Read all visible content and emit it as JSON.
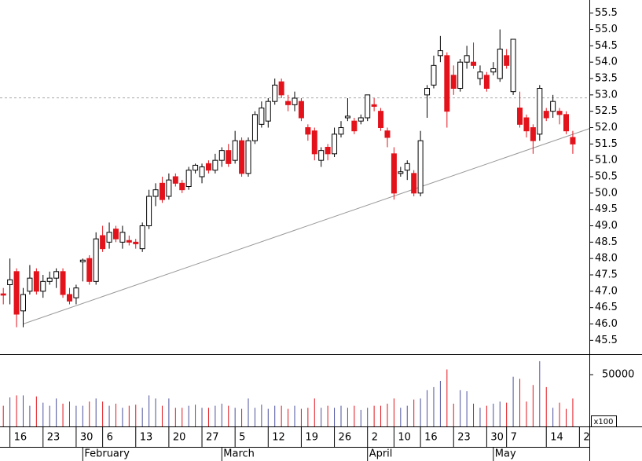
{
  "chart_data": {
    "type": "candlestick",
    "xlim": [
      -0.5,
      88.5
    ],
    "ylim": [
      45.1,
      55.9
    ],
    "yticks": [
      45.5,
      {
        "value": 46,
        "label": "46.0"
      },
      46.5,
      {
        "value": 47,
        "label": "47.0"
      },
      47.5,
      {
        "value": 48,
        "label": "48.0"
      },
      48.5,
      {
        "value": 49,
        "label": "49.0"
      },
      49.5,
      {
        "value": 50,
        "label": "50.0"
      },
      50.5,
      {
        "value": 51,
        "label": "51.0"
      },
      51.5,
      {
        "value": 52,
        "label": "52.0"
      },
      52.5,
      {
        "value": 53,
        "label": "53.0"
      },
      53.5,
      {
        "value": 54,
        "label": "54.0"
      },
      54.5,
      {
        "value": 55,
        "label": "55.0"
      },
      55.5
    ],
    "xticks": [
      {
        "value": 1,
        "label": "16"
      },
      {
        "value": 6,
        "label": "23"
      },
      {
        "value": 11,
        "label": "30"
      },
      {
        "value": 15,
        "label": "6"
      },
      {
        "value": 20,
        "label": "13"
      },
      {
        "value": 25,
        "label": "20"
      },
      {
        "value": 30,
        "label": "27"
      },
      {
        "value": 35,
        "label": "5"
      },
      {
        "value": 40,
        "label": "12"
      },
      {
        "value": 45,
        "label": "19"
      },
      {
        "value": 50,
        "label": "26"
      },
      {
        "value": 55,
        "label": "2"
      },
      {
        "value": 59,
        "label": "10"
      },
      {
        "value": 63,
        "label": "16"
      },
      {
        "value": 68,
        "label": "23"
      },
      {
        "value": 73,
        "label": "30"
      },
      {
        "value": 76,
        "label": "7"
      },
      {
        "value": 82,
        "label": "14"
      },
      {
        "value": 87,
        "label": "2"
      }
    ],
    "month_ticks": [
      {
        "value": 12,
        "label": "February"
      },
      {
        "value": 33,
        "label": "March"
      },
      {
        "value": 55,
        "label": "April"
      },
      {
        "value": 74,
        "label": "May"
      }
    ],
    "open": [
      46.92,
      47.2,
      47.6,
      46.4,
      47.0,
      47.6,
      47.0,
      47.3,
      47.4,
      47.6,
      46.9,
      46.8,
      47.9,
      48.0,
      47.3,
      48.7,
      48.5,
      48.9,
      48.5,
      48.55,
      48.5,
      48.3,
      49.0,
      49.9,
      50.3,
      49.9,
      50.5,
      50.3,
      50.2,
      50.7,
      50.5,
      50.9,
      50.7,
      51.0,
      51.3,
      51.0,
      51.6,
      50.6,
      51.6,
      52.1,
      52.2,
      52.8,
      53.4,
      52.8,
      52.7,
      52.8,
      52.0,
      51.9,
      51.0,
      51.4,
      51.2,
      51.8,
      52.3,
      52.2,
      52.2,
      52.3,
      52.7,
      52.5,
      51.9,
      51.2,
      50.6,
      50.7,
      50.6,
      50.0,
      53.0,
      53.3,
      54.2,
      54.2,
      53.6,
      53.2,
      54.0,
      54.0,
      53.5,
      53.6,
      53.7,
      53.5,
      54.2,
      53.1,
      52.6,
      52.3,
      52.0,
      51.8,
      52.5,
      52.5,
      52.5,
      52.4,
      51.7
    ],
    "high": [
      47.1,
      48.0,
      47.7,
      47.1,
      47.8,
      47.7,
      47.5,
      47.6,
      47.7,
      47.7,
      47.1,
      47.2,
      48.0,
      48.1,
      48.8,
      49.0,
      49.1,
      49.0,
      49.0,
      48.7,
      48.6,
      49.1,
      50.1,
      50.3,
      50.5,
      50.6,
      50.6,
      50.4,
      50.8,
      50.9,
      50.9,
      51.0,
      51.2,
      51.4,
      51.5,
      51.9,
      51.7,
      51.7,
      52.5,
      52.8,
      52.9,
      53.5,
      53.5,
      53.0,
      53.1,
      52.9,
      52.1,
      52.0,
      51.4,
      51.5,
      52.0,
      52.2,
      52.9,
      52.3,
      52.4,
      53.0,
      52.9,
      52.6,
      52.0,
      51.4,
      50.8,
      51.0,
      50.7,
      51.9,
      53.3,
      54.2,
      54.8,
      54.3,
      53.9,
      54.1,
      54.5,
      54.6,
      53.9,
      53.7,
      54.0,
      55.0,
      54.4,
      54.7,
      53.1,
      52.4,
      52.1,
      53.3,
      52.6,
      53.0,
      52.6,
      52.5,
      51.9
    ],
    "low": [
      46.6,
      46.6,
      45.9,
      45.9,
      46.9,
      46.9,
      46.8,
      47.2,
      47.1,
      46.8,
      46.6,
      46.6,
      47.3,
      47.2,
      47.2,
      48.2,
      48.3,
      48.5,
      48.3,
      48.4,
      48.3,
      48.2,
      48.9,
      49.6,
      49.7,
      49.8,
      50.2,
      50.0,
      50.1,
      50.6,
      50.3,
      50.6,
      50.6,
      50.8,
      50.8,
      50.9,
      50.5,
      50.5,
      51.5,
      52.0,
      52.0,
      52.7,
      52.9,
      52.5,
      52.5,
      52.2,
      51.6,
      51.0,
      50.8,
      51.0,
      51.1,
      51.7,
      52.2,
      51.8,
      52.1,
      52.2,
      52.5,
      51.9,
      51.4,
      49.8,
      50.5,
      50.4,
      49.9,
      49.9,
      52.3,
      53.2,
      54.0,
      52.0,
      53.0,
      53.1,
      53.8,
      53.8,
      53.3,
      53.1,
      53.6,
      53.4,
      53.8,
      53.0,
      52.0,
      51.7,
      51.2,
      51.6,
      52.2,
      52.3,
      52.1,
      51.8,
      51.2
    ],
    "close": [
      46.88,
      47.35,
      46.3,
      46.9,
      47.4,
      47.0,
      47.3,
      47.4,
      47.6,
      46.9,
      46.7,
      47.1,
      47.95,
      47.3,
      48.6,
      48.3,
      48.8,
      48.6,
      48.8,
      48.5,
      48.45,
      49.0,
      49.9,
      50.1,
      49.8,
      50.4,
      50.3,
      50.1,
      50.7,
      50.85,
      50.8,
      50.7,
      51.0,
      51.3,
      50.9,
      51.6,
      50.6,
      51.6,
      52.4,
      52.6,
      52.8,
      53.3,
      53.0,
      52.7,
      52.9,
      52.3,
      51.8,
      51.2,
      51.3,
      51.2,
      51.8,
      52.0,
      52.35,
      51.9,
      52.3,
      53.0,
      52.65,
      52.0,
      51.7,
      50.0,
      50.65,
      50.9,
      50.0,
      51.6,
      53.2,
      53.9,
      54.35,
      52.5,
      53.2,
      54.0,
      54.2,
      53.9,
      53.7,
      53.2,
      53.8,
      54.4,
      53.9,
      54.7,
      52.1,
      51.9,
      51.6,
      53.2,
      52.3,
      52.8,
      52.4,
      51.9,
      51.5
    ],
    "up_color": "#ffffff",
    "down_color": "#e3121b",
    "volume": [
      20000,
      28000,
      30000,
      30000,
      20000,
      29000,
      23000,
      20000,
      27000,
      22000,
      24000,
      20000,
      20000,
      24000,
      27000,
      24000,
      20000,
      22000,
      18000,
      20000,
      21000,
      18000,
      30000,
      27000,
      20000,
      27000,
      18000,
      18000,
      20000,
      21000,
      18000,
      18000,
      20000,
      22000,
      20000,
      18000,
      17000,
      27000,
      18000,
      21000,
      17000,
      20000,
      20000,
      17000,
      20000,
      17000,
      18000,
      27000,
      18000,
      20000,
      18000,
      20000,
      18000,
      20000,
      16000,
      18000,
      20000,
      20000,
      22000,
      27000,
      18000,
      20000,
      26000,
      27000,
      35000,
      38000,
      44000,
      55000,
      22000,
      35000,
      34000,
      22000,
      18000,
      20000,
      22000,
      24000,
      23000,
      48000,
      46000,
      24000,
      40000,
      63000,
      38000,
      18000,
      23000,
      17000,
      27000
    ],
    "volume_ylim": [
      0,
      69000
    ],
    "volume_yticks": [
      50000
    ],
    "volume_unit": "x100",
    "volume_up_color": "#4a4f9c",
    "volume_down_color": "#e3121b",
    "trend_line": {
      "x": [
        3,
        88.5
      ],
      "y": [
        46.0,
        51.97
      ]
    },
    "reference_line": 52.91
  }
}
